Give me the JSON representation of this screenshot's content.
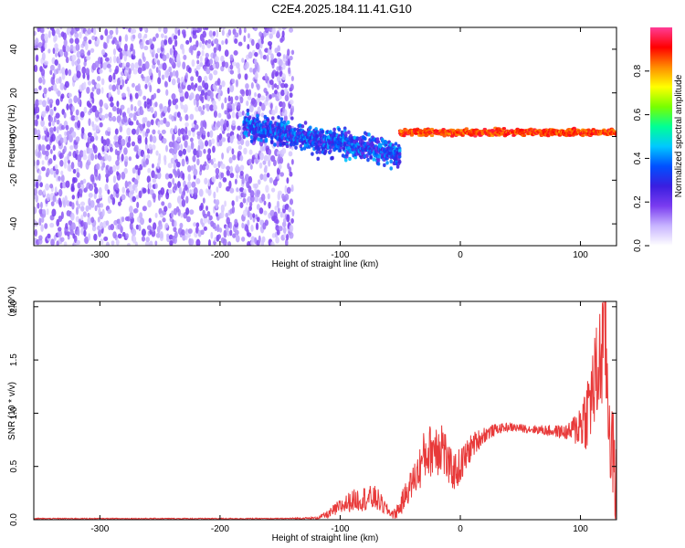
{
  "title": "C2E4.2025.184.11.41.G10",
  "chart_data": [
    {
      "type": "heatmap",
      "xlabel": "Height of straight line (km)",
      "ylabel": "Frequency (Hz)",
      "xlim": [
        -355,
        130
      ],
      "ylim": [
        -50,
        50
      ],
      "x_ticks": [
        -300,
        -200,
        -100,
        0,
        100
      ],
      "x_tick_labels": [
        "-300",
        "-200",
        "-100",
        "0",
        "100"
      ],
      "y_ticks": [
        -40,
        -20,
        0,
        20,
        40
      ],
      "y_tick_labels": [
        "-40",
        "-20",
        "0",
        "20",
        "40"
      ],
      "colorbar": {
        "label": "Normalized spectral amplitude",
        "range": [
          0,
          1
        ],
        "ticks": [
          0.0,
          0.2,
          0.4,
          0.6,
          0.8
        ],
        "tick_labels": [
          "0.0",
          "0.2",
          "0.4",
          "0.6",
          "0.8"
        ],
        "colors": [
          "#ffffff",
          "#c8b4ff",
          "#7a3cf0",
          "#3a1ee0",
          "#0050ff",
          "#00c8ff",
          "#00ff96",
          "#78ff00",
          "#ffff00",
          "#ff8c00",
          "#ff0000",
          "#ff3c96"
        ]
      },
      "regions": [
        {
          "x_range": [
            -355,
            -140
          ],
          "freq_range": [
            -50,
            50
          ],
          "amplitude": [
            0.05,
            0.2
          ],
          "description": "broadband noise"
        },
        {
          "x_range": [
            -180,
            -50
          ],
          "freq_center": [
            5,
            -8
          ],
          "freq_spread": 8,
          "amplitude": [
            0.2,
            0.45
          ]
        },
        {
          "x_range": [
            -50,
            130
          ],
          "freq_center": 2,
          "freq_spread": 2,
          "amplitude": [
            0.8,
            0.95
          ]
        }
      ],
      "grid": false
    },
    {
      "type": "line",
      "xlabel": "Height of straight line (km)",
      "ylabel": "SNR (10 * v/v)",
      "y_multiplier": "(x10^4)",
      "xlim": [
        -355,
        130
      ],
      "ylim": [
        0,
        2.05
      ],
      "x_ticks": [
        -300,
        -200,
        -100,
        0,
        100
      ],
      "x_tick_labels": [
        "-300",
        "-200",
        "-100",
        "0",
        "100"
      ],
      "y_ticks": [
        0.0,
        0.5,
        1.0,
        1.5,
        2.0
      ],
      "y_tick_labels": [
        "0.0",
        "0.5",
        "1.0",
        "1.5",
        "2.0"
      ],
      "series": [
        {
          "color": "#e83a3a",
          "x": [
            -355,
            -300,
            -250,
            -200,
            -150,
            -120,
            -110,
            -100,
            -90,
            -80,
            -70,
            -60,
            -55,
            -50,
            -45,
            -40,
            -35,
            -30,
            -25,
            -20,
            -15,
            -10,
            -5,
            0,
            10,
            20,
            30,
            40,
            50,
            60,
            70,
            80,
            90,
            95,
            100,
            105,
            110,
            115,
            118,
            120,
            122,
            125,
            130
          ],
          "y": [
            0.01,
            0.01,
            0.01,
            0.01,
            0.01,
            0.015,
            0.05,
            0.12,
            0.18,
            0.2,
            0.2,
            0.08,
            0.05,
            0.12,
            0.25,
            0.35,
            0.45,
            0.6,
            0.65,
            0.7,
            0.72,
            0.5,
            0.45,
            0.5,
            0.7,
            0.8,
            0.85,
            0.87,
            0.86,
            0.85,
            0.84,
            0.83,
            0.82,
            0.85,
            0.9,
            1.0,
            1.2,
            1.4,
            1.6,
            2.05,
            1.3,
            0.8,
            0.3
          ],
          "noise_amplitude": [
            0.005,
            0.005,
            0.005,
            0.005,
            0.005,
            0.01,
            0.04,
            0.08,
            0.1,
            0.12,
            0.12,
            0.05,
            0.05,
            0.1,
            0.12,
            0.15,
            0.2,
            0.25,
            0.25,
            0.3,
            0.3,
            0.2,
            0.18,
            0.18,
            0.12,
            0.08,
            0.05,
            0.04,
            0.04,
            0.04,
            0.05,
            0.06,
            0.08,
            0.15,
            0.25,
            0.35,
            0.45,
            0.55,
            0.6,
            0.7,
            0.6,
            0.5,
            0.4
          ]
        }
      ],
      "grid": false
    }
  ]
}
